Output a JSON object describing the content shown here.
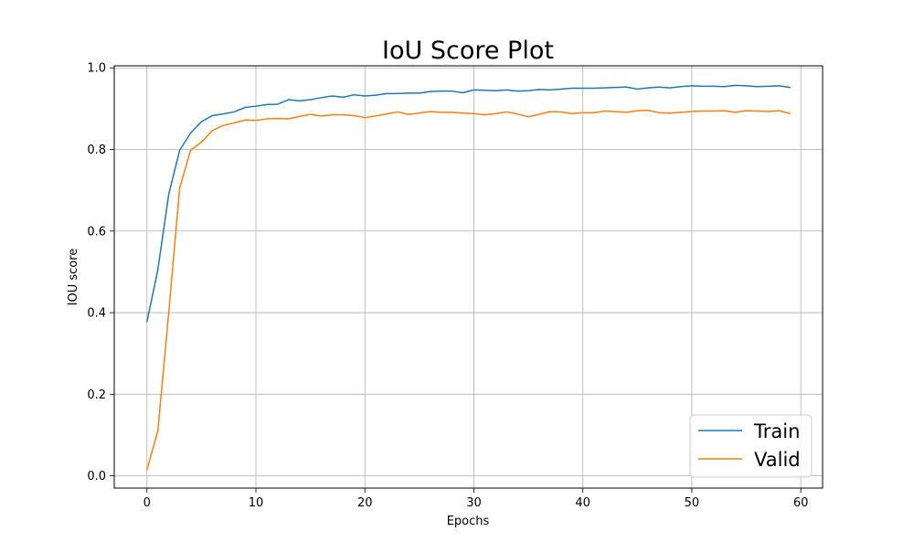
{
  "chart_data": {
    "type": "line",
    "title": "IoU Score Plot",
    "xlabel": "Epochs",
    "ylabel": "IOU score",
    "xlim": [
      -3,
      62
    ],
    "ylim": [
      -0.03,
      1.005
    ],
    "xticks": [
      0,
      10,
      20,
      30,
      40,
      50,
      60
    ],
    "yticks": [
      0.0,
      0.2,
      0.4,
      0.6,
      0.8,
      1.0
    ],
    "xtick_labels": [
      "0",
      "10",
      "20",
      "30",
      "40",
      "50",
      "60"
    ],
    "ytick_labels": [
      "0.0",
      "0.2",
      "0.4",
      "0.6",
      "0.8",
      "1.0"
    ],
    "grid": true,
    "legend_position": "bottom-right",
    "x": [
      0,
      1,
      2,
      3,
      4,
      5,
      6,
      7,
      8,
      9,
      10,
      11,
      12,
      13,
      14,
      15,
      16,
      17,
      18,
      19,
      20,
      21,
      22,
      23,
      24,
      25,
      26,
      27,
      28,
      29,
      30,
      31,
      32,
      33,
      34,
      35,
      36,
      37,
      38,
      39,
      40,
      41,
      42,
      43,
      44,
      45,
      46,
      47,
      48,
      49,
      50,
      51,
      52,
      53,
      54,
      55,
      56,
      57,
      58,
      59
    ],
    "series": [
      {
        "name": "Train",
        "color": "#1f77b4",
        "values": [
          0.378,
          0.505,
          0.69,
          0.798,
          0.84,
          0.868,
          0.883,
          0.887,
          0.892,
          0.903,
          0.906,
          0.91,
          0.911,
          0.922,
          0.919,
          0.922,
          0.927,
          0.931,
          0.928,
          0.934,
          0.931,
          0.933,
          0.937,
          0.937,
          0.938,
          0.938,
          0.942,
          0.943,
          0.943,
          0.939,
          0.946,
          0.945,
          0.944,
          0.946,
          0.943,
          0.944,
          0.947,
          0.946,
          0.948,
          0.95,
          0.95,
          0.95,
          0.951,
          0.952,
          0.953,
          0.948,
          0.951,
          0.953,
          0.951,
          0.954,
          0.956,
          0.955,
          0.955,
          0.954,
          0.957,
          0.956,
          0.954,
          0.955,
          0.956,
          0.952
        ]
      },
      {
        "name": "Valid",
        "color": "#ff7f0e",
        "values": [
          0.015,
          0.11,
          0.4,
          0.705,
          0.798,
          0.818,
          0.846,
          0.859,
          0.865,
          0.872,
          0.871,
          0.875,
          0.876,
          0.875,
          0.881,
          0.886,
          0.882,
          0.885,
          0.885,
          0.883,
          0.878,
          0.882,
          0.887,
          0.892,
          0.886,
          0.889,
          0.893,
          0.891,
          0.891,
          0.889,
          0.888,
          0.885,
          0.888,
          0.892,
          0.887,
          0.88,
          0.886,
          0.893,
          0.892,
          0.888,
          0.89,
          0.89,
          0.894,
          0.893,
          0.891,
          0.895,
          0.896,
          0.89,
          0.889,
          0.891,
          0.893,
          0.894,
          0.894,
          0.895,
          0.891,
          0.895,
          0.894,
          0.893,
          0.895,
          0.888
        ]
      }
    ]
  }
}
